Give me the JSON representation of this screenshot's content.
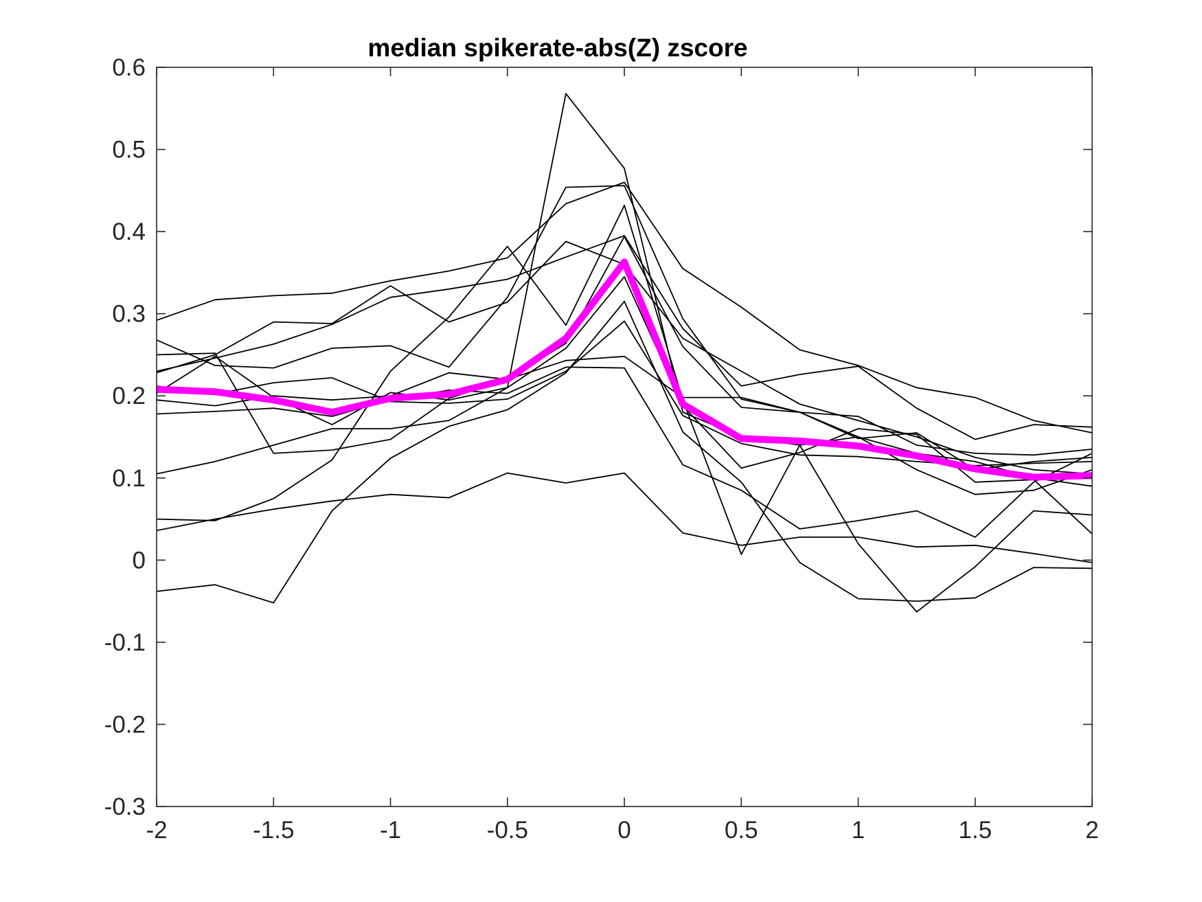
{
  "colors": {
    "background": "#ffffff",
    "axes": "#262626",
    "thin_series": "#000000",
    "median_series": "#ff00ff"
  },
  "chart_data": {
    "type": "line",
    "title": "median  spikerate-abs(Z) zscore",
    "xlabel": "",
    "ylabel": "",
    "xlim": [
      -2,
      2
    ],
    "ylim": [
      -0.3,
      0.6
    ],
    "xticks": [
      -2,
      -1.5,
      -1,
      -0.5,
      0,
      0.5,
      1,
      1.5,
      2
    ],
    "xtick_labels": [
      "-2",
      "-1.5",
      "-1",
      "-0.5",
      "0",
      "0.5",
      "1",
      "1.5",
      "2"
    ],
    "yticks": [
      -0.3,
      -0.2,
      -0.1,
      0,
      0.1,
      0.2,
      0.3,
      0.4,
      0.5,
      0.6
    ],
    "ytick_labels": [
      "-0.3",
      "-0.2",
      "-0.1",
      "0",
      "0.1",
      "0.2",
      "0.3",
      "0.4",
      "0.5",
      "0.6"
    ],
    "grid": false,
    "legend": "none",
    "x": [
      -2,
      -1.75,
      -1.5,
      -1.25,
      -1,
      -0.75,
      -0.5,
      -0.25,
      0,
      0.25,
      0.5,
      0.75,
      1,
      1.25,
      1.5,
      1.75,
      2
    ],
    "series": [
      {
        "values": [
          0.292,
          0.317,
          0.322,
          0.325,
          0.34,
          0.352,
          0.368,
          0.434,
          0.46,
          0.355,
          0.308,
          0.256,
          0.237,
          0.21,
          0.198,
          0.17,
          0.155
        ],
        "style": "thin"
      },
      {
        "values": [
          0.228,
          0.25,
          0.29,
          0.288,
          0.334,
          0.29,
          0.314,
          0.388,
          0.36,
          0.27,
          0.23,
          0.19,
          0.17,
          0.15,
          0.125,
          0.11,
          0.105
        ],
        "style": "thin"
      },
      {
        "values": [
          0.23,
          0.246,
          0.263,
          0.287,
          0.32,
          0.33,
          0.342,
          0.369,
          0.395,
          0.282,
          0.212,
          0.226,
          0.236,
          0.185,
          0.147,
          0.165,
          0.162
        ],
        "style": "thin"
      },
      {
        "values": [
          0.268,
          0.237,
          0.234,
          0.258,
          0.261,
          0.235,
          0.32,
          0.454,
          0.456,
          0.294,
          0.196,
          0.18,
          0.15,
          0.13,
          0.12,
          0.1,
          0.09
        ],
        "style": "thin"
      },
      {
        "values": [
          0.105,
          0.12,
          0.14,
          0.16,
          0.16,
          0.17,
          0.21,
          0.568,
          0.477,
          0.18,
          0.15,
          0.14,
          0.15,
          0.11,
          0.08,
          0.085,
          0.11
        ],
        "style": "thin"
      },
      {
        "values": [
          0.05,
          0.048,
          0.075,
          0.122,
          0.23,
          0.296,
          0.382,
          0.286,
          0.432,
          0.195,
          0.007,
          0.14,
          0.02,
          -0.063,
          -0.008,
          0.06,
          0.055
        ],
        "style": "thin"
      },
      {
        "values": [
          0.25,
          0.252,
          0.13,
          0.134,
          0.147,
          0.197,
          0.22,
          0.264,
          0.394,
          0.26,
          0.186,
          0.18,
          0.175,
          0.14,
          0.13,
          0.128,
          0.135
        ],
        "style": "thin"
      },
      {
        "values": [
          0.195,
          0.188,
          0.2,
          0.195,
          0.2,
          0.228,
          0.22,
          0.243,
          0.248,
          0.198,
          0.198,
          0.18,
          0.148,
          0.155,
          0.11,
          0.12,
          0.125
        ],
        "style": "thin"
      },
      {
        "values": [
          0.212,
          0.202,
          0.216,
          0.222,
          0.193,
          0.191,
          0.196,
          0.23,
          0.291,
          0.176,
          0.142,
          0.128,
          0.126,
          0.12,
          0.115,
          0.118,
          0.12
        ],
        "style": "thin"
      },
      {
        "values": [
          0.178,
          0.181,
          0.185,
          0.175,
          0.195,
          0.207,
          0.203,
          0.235,
          0.234,
          0.116,
          0.085,
          0.038,
          0.048,
          0.06,
          0.028,
          0.095,
          0.13
        ],
        "style": "thin"
      },
      {
        "values": [
          0.036,
          0.05,
          0.062,
          0.072,
          0.08,
          0.076,
          0.106,
          0.094,
          0.106,
          0.033,
          0.018,
          0.028,
          0.028,
          0.016,
          0.018,
          0.008,
          -0.003
        ],
        "style": "thin"
      },
      {
        "values": [
          -0.038,
          -0.03,
          -0.052,
          0.06,
          0.124,
          0.163,
          0.183,
          0.228,
          0.315,
          0.156,
          0.095,
          -0.003,
          -0.047,
          -0.05,
          -0.046,
          -0.009,
          -0.01
        ],
        "style": "thin"
      },
      {
        "values": [
          0.203,
          0.248,
          0.198,
          0.165,
          0.204,
          0.195,
          0.21,
          0.258,
          0.345,
          0.188,
          0.112,
          0.131,
          0.16,
          0.153,
          0.095,
          0.098,
          0.032
        ],
        "style": "thin"
      },
      {
        "values": [
          0.208,
          0.205,
          0.195,
          0.18,
          0.197,
          0.202,
          0.22,
          0.27,
          0.363,
          0.19,
          0.148,
          0.145,
          0.139,
          0.127,
          0.111,
          0.101,
          0.103
        ],
        "style": "median"
      }
    ]
  }
}
